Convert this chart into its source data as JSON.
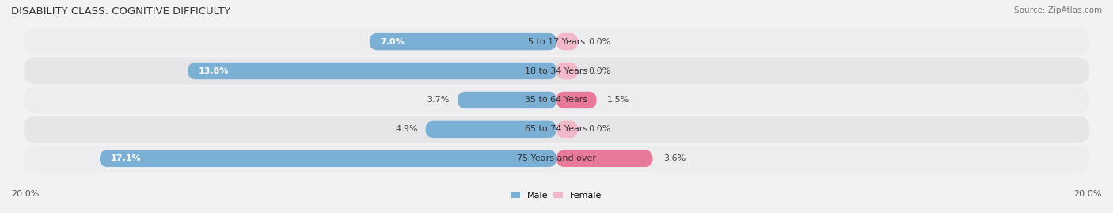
{
  "title": "DISABILITY CLASS: COGNITIVE DIFFICULTY",
  "source": "Source: ZipAtlas.com",
  "categories": [
    "5 to 17 Years",
    "18 to 34 Years",
    "35 to 64 Years",
    "65 to 74 Years",
    "75 Years and over"
  ],
  "male_values": [
    7.0,
    13.8,
    3.7,
    4.9,
    17.1
  ],
  "female_values": [
    0.0,
    0.0,
    1.5,
    0.0,
    3.6
  ],
  "female_stub": 0.8,
  "male_color": "#7bafd4",
  "female_color_light": "#f0b8c8",
  "female_color_dark": "#e8799a",
  "male_label": "Male",
  "female_label": "Female",
  "axis_max": 20.0,
  "bar_height": 0.58,
  "row_bg_light": "#efefef",
  "row_bg_dark": "#e5e5e8",
  "x_axis_left_label": "20.0%",
  "x_axis_right_label": "20.0%",
  "title_fontsize": 9.5,
  "label_fontsize": 8,
  "value_fontsize": 8,
  "tick_fontsize": 8,
  "inside_label_threshold": 6.0
}
